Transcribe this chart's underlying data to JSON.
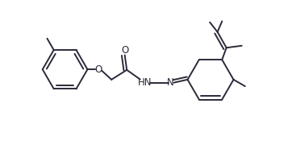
{
  "bg_color": "#ffffff",
  "line_color": "#2a2a3a",
  "line_width": 1.4,
  "font_size": 8.5,
  "figsize": [
    3.67,
    1.85
  ],
  "dpi": 100,
  "xlim": [
    0,
    10.2
  ],
  "ylim": [
    0.0,
    5.8
  ]
}
